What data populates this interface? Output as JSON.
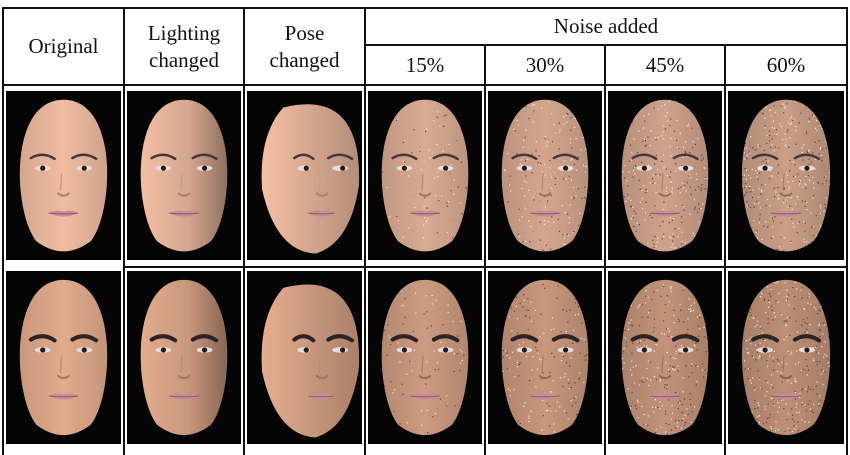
{
  "header": {
    "original": "Original",
    "lighting": "Lighting\nchanged",
    "pose": "Pose\nchanged",
    "noise_group": "Noise added",
    "noise_levels": [
      "15%",
      "30%",
      "45%",
      "60%"
    ]
  },
  "rows": [
    {
      "subject": "female",
      "columns": [
        {
          "condition": "original",
          "noise_fraction": 0
        },
        {
          "condition": "lighting",
          "noise_fraction": 0
        },
        {
          "condition": "pose",
          "noise_fraction": 0
        },
        {
          "condition": "noise",
          "noise_fraction": 0.15
        },
        {
          "condition": "noise",
          "noise_fraction": 0.3
        },
        {
          "condition": "noise",
          "noise_fraction": 0.45
        },
        {
          "condition": "noise",
          "noise_fraction": 0.6
        }
      ]
    },
    {
      "subject": "male",
      "columns": [
        {
          "condition": "original",
          "noise_fraction": 0
        },
        {
          "condition": "lighting",
          "noise_fraction": 0
        },
        {
          "condition": "pose",
          "noise_fraction": 0
        },
        {
          "condition": "noise",
          "noise_fraction": 0.15
        },
        {
          "condition": "noise",
          "noise_fraction": 0.3
        },
        {
          "condition": "noise",
          "noise_fraction": 0.45
        },
        {
          "condition": "noise",
          "noise_fraction": 0.6
        }
      ]
    }
  ],
  "colors": {
    "background": "#050505",
    "female_skin": "#e7b59b",
    "male_skin": "#d9a487",
    "lips": "#c88b98",
    "brow": "#2b2326",
    "text": "#111111"
  }
}
